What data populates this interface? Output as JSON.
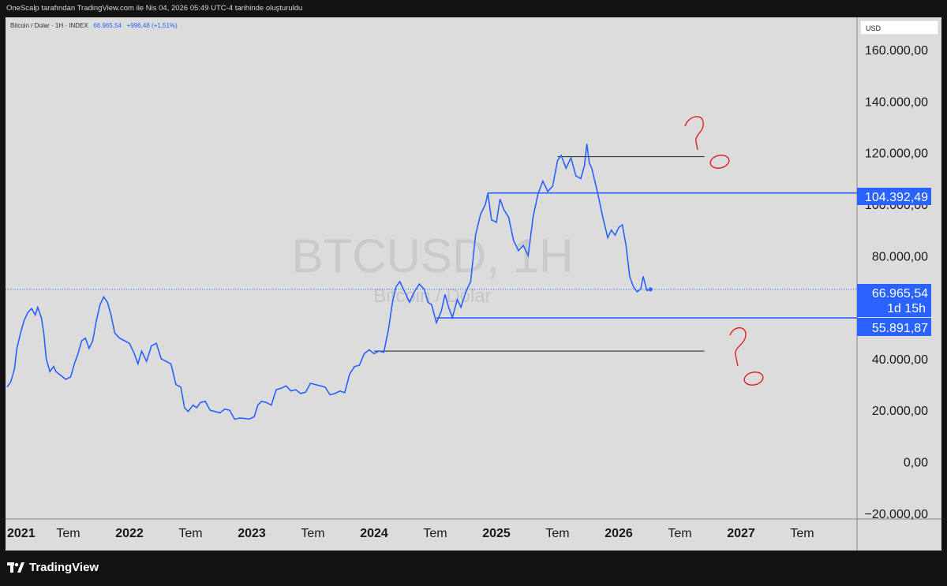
{
  "header": {
    "caption": "OneScalp tarafından TradingView.com ile Nis 04, 2026 05:49 UTC-4 tarihinde oluşturuldu"
  },
  "legend": {
    "symbol": "Bitcoin / Dolar · 1H · INDEX",
    "price": "66.965,54",
    "change": "+996,48 (+1,51%)"
  },
  "watermark": {
    "ticker": "BTCUSD, 1H",
    "name": "Bitcoin / Dolar"
  },
  "currency_label": "USD",
  "price_tags": {
    "upper_level": "104.392,49",
    "current_price": "66.965,54",
    "countdown": "1d 15h",
    "lower_level": "55.891,87"
  },
  "annotations": [
    "?",
    "?"
  ],
  "brand": "TradingView",
  "colors": {
    "line": "#2962ff",
    "tag": "#2962ff",
    "background": "#dcdcdc",
    "frame": "#131313",
    "annotation": "#e02020"
  },
  "chart_data": {
    "type": "line",
    "title": "BTCUSD, 1H",
    "xlabel": "",
    "ylabel": "",
    "ylim": [
      -20000,
      170000
    ],
    "xlim": [
      2021.0,
      2028.0
    ],
    "y_ticks": [
      {
        "value": 160000,
        "label": "160.000,00"
      },
      {
        "value": 140000,
        "label": "140.000,00"
      },
      {
        "value": 120000,
        "label": "120.000,00"
      },
      {
        "value": 100000,
        "label": "100.000,00"
      },
      {
        "value": 80000,
        "label": "80.000,00"
      },
      {
        "value": 40000,
        "label": "40.000,00"
      },
      {
        "value": 20000,
        "label": "20.000,00"
      },
      {
        "value": 0,
        "label": "0,00"
      },
      {
        "value": -20000,
        "label": "−20.000,00"
      }
    ],
    "x_ticks": [
      {
        "value": 2021.0,
        "label": "2021"
      },
      {
        "value": 2021.5,
        "label": "Tem"
      },
      {
        "value": 2022.0,
        "label": "2022"
      },
      {
        "value": 2022.5,
        "label": "Tem"
      },
      {
        "value": 2023.0,
        "label": "2023"
      },
      {
        "value": 2023.5,
        "label": "Tem"
      },
      {
        "value": 2024.0,
        "label": "2024"
      },
      {
        "value": 2024.5,
        "label": "Tem"
      },
      {
        "value": 2025.0,
        "label": "2025"
      },
      {
        "value": 2025.5,
        "label": "Tem"
      },
      {
        "value": 2026.0,
        "label": "2026"
      },
      {
        "value": 2026.5,
        "label": "Tem"
      },
      {
        "value": 2027.0,
        "label": "2027"
      },
      {
        "value": 2027.5,
        "label": "Tem"
      }
    ],
    "series": [
      {
        "name": "BTCUSD",
        "points": [
          [
            2021.0,
            29000
          ],
          [
            2021.03,
            31000
          ],
          [
            2021.06,
            36000
          ],
          [
            2021.08,
            44000
          ],
          [
            2021.11,
            50000
          ],
          [
            2021.14,
            55000
          ],
          [
            2021.17,
            58000
          ],
          [
            2021.2,
            59500
          ],
          [
            2021.23,
            57000
          ],
          [
            2021.25,
            60000
          ],
          [
            2021.28,
            56000
          ],
          [
            2021.3,
            50000
          ],
          [
            2021.32,
            40000
          ],
          [
            2021.35,
            35000
          ],
          [
            2021.38,
            37000
          ],
          [
            2021.4,
            35000
          ],
          [
            2021.44,
            33500
          ],
          [
            2021.48,
            32000
          ],
          [
            2021.52,
            33000
          ],
          [
            2021.55,
            38000
          ],
          [
            2021.58,
            42000
          ],
          [
            2021.61,
            47000
          ],
          [
            2021.64,
            48000
          ],
          [
            2021.67,
            44000
          ],
          [
            2021.7,
            47000
          ],
          [
            2021.73,
            55000
          ],
          [
            2021.76,
            61000
          ],
          [
            2021.79,
            64000
          ],
          [
            2021.82,
            62000
          ],
          [
            2021.85,
            57000
          ],
          [
            2021.88,
            50000
          ],
          [
            2021.92,
            48000
          ],
          [
            2021.96,
            47000
          ],
          [
            2022.0,
            46000
          ],
          [
            2022.04,
            42000
          ],
          [
            2022.07,
            38000
          ],
          [
            2022.1,
            43000
          ],
          [
            2022.14,
            39000
          ],
          [
            2022.18,
            45000
          ],
          [
            2022.22,
            46000
          ],
          [
            2022.26,
            40000
          ],
          [
            2022.3,
            39000
          ],
          [
            2022.34,
            38000
          ],
          [
            2022.38,
            30000
          ],
          [
            2022.42,
            29000
          ],
          [
            2022.45,
            21000
          ],
          [
            2022.48,
            19500
          ],
          [
            2022.52,
            22000
          ],
          [
            2022.55,
            21000
          ],
          [
            2022.58,
            23000
          ],
          [
            2022.62,
            23500
          ],
          [
            2022.66,
            20000
          ],
          [
            2022.7,
            19500
          ],
          [
            2022.74,
            19000
          ],
          [
            2022.78,
            20500
          ],
          [
            2022.82,
            20000
          ],
          [
            2022.86,
            16500
          ],
          [
            2022.9,
            17000
          ],
          [
            2022.94,
            16800
          ],
          [
            2022.98,
            16600
          ],
          [
            2023.02,
            17500
          ],
          [
            2023.05,
            22000
          ],
          [
            2023.08,
            23500
          ],
          [
            2023.12,
            23000
          ],
          [
            2023.16,
            22000
          ],
          [
            2023.2,
            28000
          ],
          [
            2023.24,
            28500
          ],
          [
            2023.28,
            29500
          ],
          [
            2023.32,
            27500
          ],
          [
            2023.36,
            28000
          ],
          [
            2023.4,
            26500
          ],
          [
            2023.44,
            27000
          ],
          [
            2023.48,
            30500
          ],
          [
            2023.52,
            30000
          ],
          [
            2023.56,
            29500
          ],
          [
            2023.6,
            29000
          ],
          [
            2023.64,
            26000
          ],
          [
            2023.68,
            26500
          ],
          [
            2023.72,
            27500
          ],
          [
            2023.76,
            26800
          ],
          [
            2023.8,
            34000
          ],
          [
            2023.84,
            37000
          ],
          [
            2023.88,
            37500
          ],
          [
            2023.92,
            42000
          ],
          [
            2023.96,
            43500
          ],
          [
            2024.0,
            42000
          ],
          [
            2024.04,
            43000
          ],
          [
            2024.08,
            42500
          ],
          [
            2024.12,
            52000
          ],
          [
            2024.15,
            62000
          ],
          [
            2024.18,
            68000
          ],
          [
            2024.21,
            70000
          ],
          [
            2024.25,
            66000
          ],
          [
            2024.29,
            62000
          ],
          [
            2024.33,
            66000
          ],
          [
            2024.37,
            69000
          ],
          [
            2024.41,
            67000
          ],
          [
            2024.44,
            62000
          ],
          [
            2024.47,
            61000
          ],
          [
            2024.51,
            54000
          ],
          [
            2024.55,
            58500
          ],
          [
            2024.58,
            65000
          ],
          [
            2024.61,
            60000
          ],
          [
            2024.64,
            56000
          ],
          [
            2024.68,
            63000
          ],
          [
            2024.71,
            60000
          ],
          [
            2024.75,
            66000
          ],
          [
            2024.79,
            70000
          ],
          [
            2024.83,
            88000
          ],
          [
            2024.87,
            96000
          ],
          [
            2024.91,
            100000
          ],
          [
            2024.93,
            104392
          ],
          [
            2024.96,
            94000
          ],
          [
            2025.0,
            93000
          ],
          [
            2025.03,
            102000
          ],
          [
            2025.06,
            98000
          ],
          [
            2025.1,
            95000
          ],
          [
            2025.14,
            86000
          ],
          [
            2025.18,
            82000
          ],
          [
            2025.22,
            84000
          ],
          [
            2025.26,
            80000
          ],
          [
            2025.3,
            95000
          ],
          [
            2025.34,
            104000
          ],
          [
            2025.38,
            109000
          ],
          [
            2025.42,
            105000
          ],
          [
            2025.46,
            107000
          ],
          [
            2025.5,
            117000
          ],
          [
            2025.53,
            119000
          ],
          [
            2025.57,
            114000
          ],
          [
            2025.61,
            118000
          ],
          [
            2025.65,
            111000
          ],
          [
            2025.69,
            110000
          ],
          [
            2025.72,
            115000
          ],
          [
            2025.74,
            123500
          ],
          [
            2025.76,
            116000
          ],
          [
            2025.78,
            114000
          ],
          [
            2025.8,
            110000
          ],
          [
            2025.83,
            104000
          ],
          [
            2025.87,
            95000
          ],
          [
            2025.91,
            87000
          ],
          [
            2025.94,
            90000
          ],
          [
            2025.97,
            88000
          ],
          [
            2026.0,
            91000
          ],
          [
            2026.03,
            92000
          ],
          [
            2026.06,
            84000
          ],
          [
            2026.09,
            72000
          ],
          [
            2026.12,
            68000
          ],
          [
            2026.15,
            66000
          ],
          [
            2026.18,
            67000
          ],
          [
            2026.2,
            72000
          ],
          [
            2026.23,
            66500
          ],
          [
            2026.26,
            66965
          ]
        ]
      }
    ],
    "levels": [
      {
        "value": 118500,
        "x_start": 2025.5,
        "x_end": 2026.7
      },
      {
        "value": 104392.49,
        "x_start": 2024.93,
        "x_end": 2028.0
      },
      {
        "value": 55891.87,
        "x_start": 2024.51,
        "x_end": 2028.0
      },
      {
        "value": 43000,
        "x_start": 2024.0,
        "x_end": 2026.7
      }
    ],
    "current_price": 66965.54,
    "grid": false,
    "legend_position": "top-left"
  }
}
